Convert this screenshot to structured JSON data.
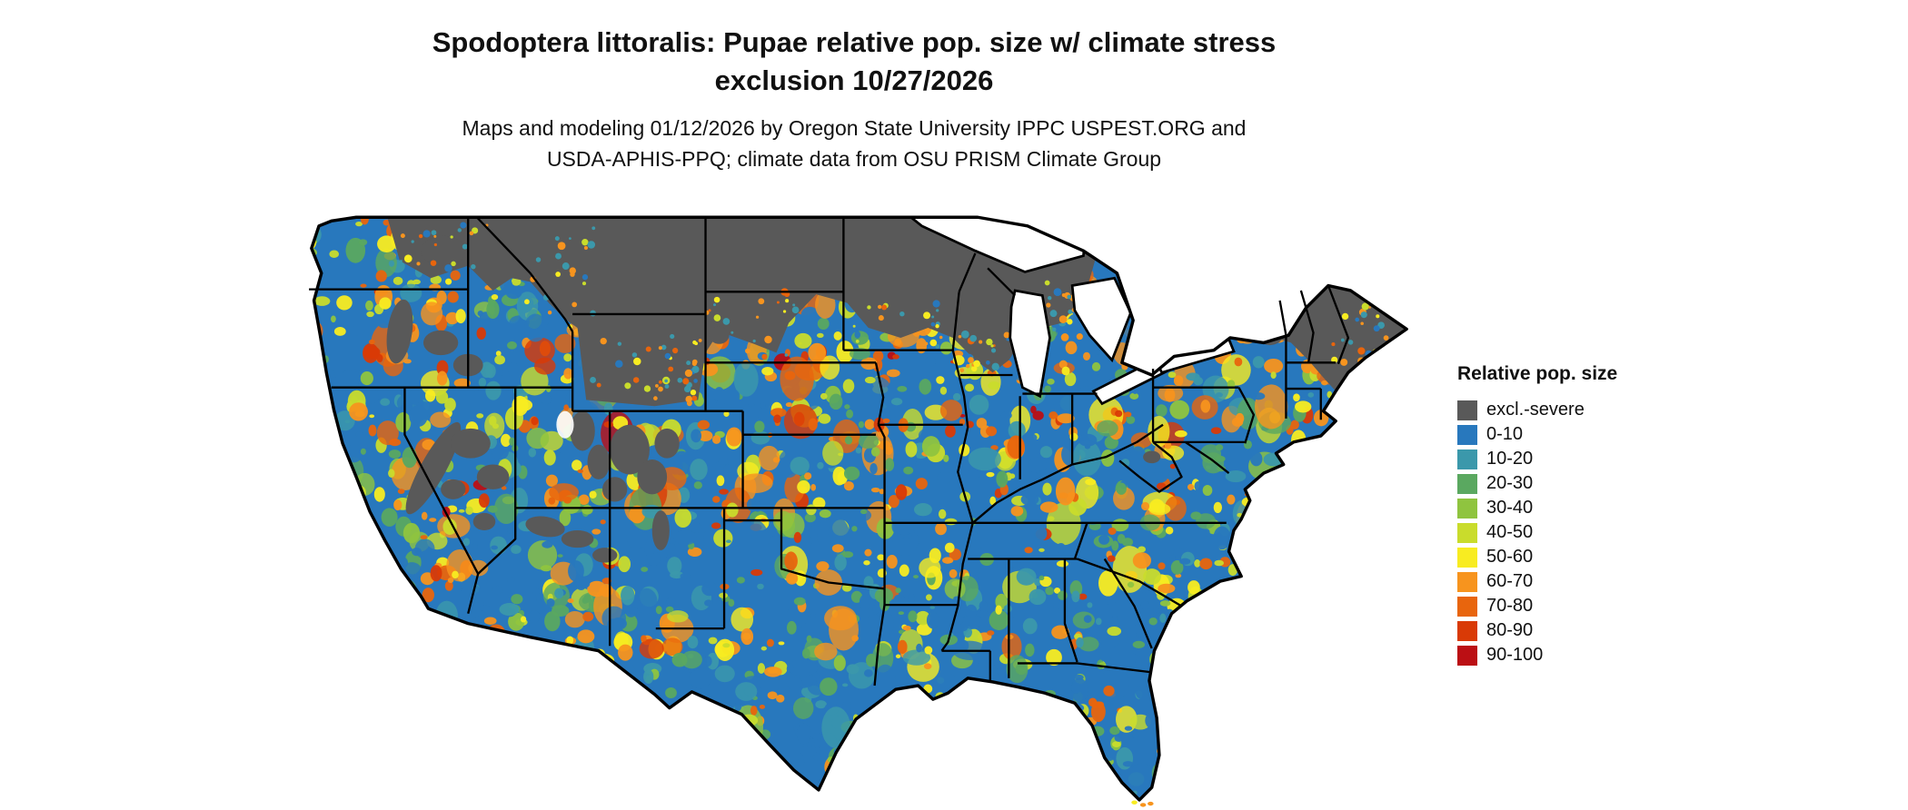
{
  "title": {
    "line1": "Spodoptera littoralis: Pupae relative pop. size w/ climate stress",
    "line2": "exclusion 10/27/2026"
  },
  "subtitle": {
    "line1": "Maps and modeling 01/12/2026 by Oregon State University IPPC USPEST.ORG and",
    "line2": "USDA-APHIS-PPQ; climate data from OSU PRISM Climate Group"
  },
  "legend": {
    "title": "Relative pop. size",
    "entries": [
      {
        "label": "excl.-severe",
        "color": "#595959"
      },
      {
        "label": "0-10",
        "color": "#2878bd"
      },
      {
        "label": "10-20",
        "color": "#3b98ab"
      },
      {
        "label": "20-30",
        "color": "#5aa860"
      },
      {
        "label": "30-40",
        "color": "#8fc43f"
      },
      {
        "label": "40-50",
        "color": "#c9dc2c"
      },
      {
        "label": "50-60",
        "color": "#f8ec21"
      },
      {
        "label": "60-70",
        "color": "#f7941e"
      },
      {
        "label": "70-80",
        "color": "#e8650d"
      },
      {
        "label": "80-90",
        "color": "#d93a06"
      },
      {
        "label": "90-100",
        "color": "#bb0f14"
      }
    ]
  },
  "map": {
    "region": "Continental United States",
    "water_color": "#ffffff",
    "border_color": "#000000",
    "base_color": "#2878bd",
    "excluded_color": "#595959",
    "palette": [
      "#595959",
      "#2878bd",
      "#3b98ab",
      "#5aa860",
      "#8fc43f",
      "#c9dc2c",
      "#f8ec21",
      "#f7941e",
      "#e8650d",
      "#d93a06",
      "#bb0f14"
    ]
  }
}
